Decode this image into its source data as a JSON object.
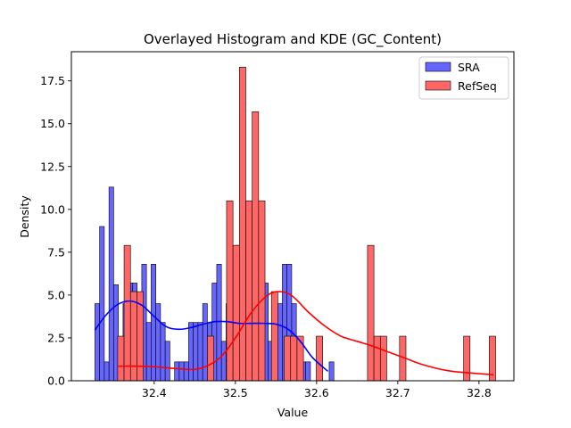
{
  "chart_data": {
    "type": "bar",
    "title": "Overlayed Histogram and KDE (GC_Content)",
    "xlabel": "Value",
    "ylabel": "Density",
    "xlim": [
      32.298,
      32.843
    ],
    "ylim": [
      0,
      19.2
    ],
    "xticks": [
      32.4,
      32.5,
      32.6,
      32.7,
      32.8
    ],
    "xtick_labels": [
      "32.4",
      "32.5",
      "32.6",
      "32.7",
      "32.8"
    ],
    "yticks": [
      0,
      2.5,
      5,
      7.5,
      10,
      12.5,
      15,
      17.5
    ],
    "ytick_labels": [
      "0.0",
      "2.5",
      "5.0",
      "7.5",
      "10.0",
      "12.5",
      "15.0",
      "17.5"
    ],
    "grid": false,
    "legend_position": "top-right",
    "series": [
      {
        "name": "SRA",
        "color": "#0000ff",
        "bar_fill": "#6666ff",
        "bin_start": 32.327,
        "bin_width": 0.00577,
        "values": [
          4.5,
          9.0,
          1.1,
          11.3,
          5.6,
          2.3,
          4.5,
          5.7,
          5.7,
          3.4,
          6.8,
          3.4,
          6.8,
          4.5,
          3.4,
          2.3,
          0,
          1.1,
          1.1,
          1.1,
          3.4,
          3.4,
          3.4,
          4.5,
          3.4,
          5.7,
          6.8,
          2.3,
          4.5,
          1.1,
          7.9,
          3.4,
          2.3,
          4.5,
          3.4,
          2.3,
          5.7,
          2.3,
          3.4,
          4.5,
          6.8,
          6.8,
          4.5,
          2.3,
          1.1,
          1.1,
          0,
          0,
          0,
          0,
          1.1
        ],
        "kde": {
          "x": [
            32.327,
            32.34,
            32.355,
            32.37,
            32.385,
            32.4,
            32.415,
            32.43,
            32.445,
            32.46,
            32.475,
            32.49,
            32.505,
            32.52,
            32.535,
            32.55,
            32.565,
            32.58,
            32.595,
            32.614
          ],
          "y": [
            2.95,
            3.8,
            4.45,
            4.65,
            4.4,
            3.75,
            3.15,
            3.0,
            3.1,
            3.3,
            3.45,
            3.45,
            3.35,
            3.35,
            3.35,
            3.3,
            3.0,
            2.3,
            1.35,
            0.55
          ]
        }
      },
      {
        "name": "RefSeq",
        "color": "#ff0000",
        "bar_fill": "#ff6666",
        "bin_start": 32.355,
        "bin_width": 0.00789,
        "values": [
          2.6,
          7.9,
          5.2,
          5.2,
          0,
          0,
          0,
          0,
          0,
          0,
          0,
          0,
          0,
          0,
          2.6,
          0,
          0,
          10.5,
          7.9,
          18.3,
          10.5,
          15.7,
          10.5,
          0,
          5.2,
          0,
          2.6,
          2.6,
          2.6,
          0,
          0,
          2.6,
          0,
          0,
          0,
          0,
          0,
          0,
          0,
          7.9,
          2.6,
          2.6,
          0,
          0,
          2.6,
          0,
          0,
          0,
          0,
          0,
          0,
          0,
          0,
          0,
          2.6,
          0,
          0,
          0,
          2.6
        ],
        "kde": {
          "x": [
            32.355,
            32.38,
            32.405,
            32.43,
            32.455,
            32.48,
            32.5,
            32.52,
            32.54,
            32.555,
            32.57,
            32.59,
            32.61,
            32.63,
            32.65,
            32.67,
            32.69,
            32.71,
            32.73,
            32.76,
            32.79,
            32.818
          ],
          "y": [
            0.85,
            0.85,
            0.8,
            0.7,
            0.7,
            1.3,
            2.5,
            4.0,
            5.0,
            5.2,
            4.95,
            4.0,
            3.2,
            2.6,
            2.3,
            2.0,
            1.65,
            1.3,
            0.95,
            0.6,
            0.45,
            0.35
          ]
        }
      }
    ]
  }
}
